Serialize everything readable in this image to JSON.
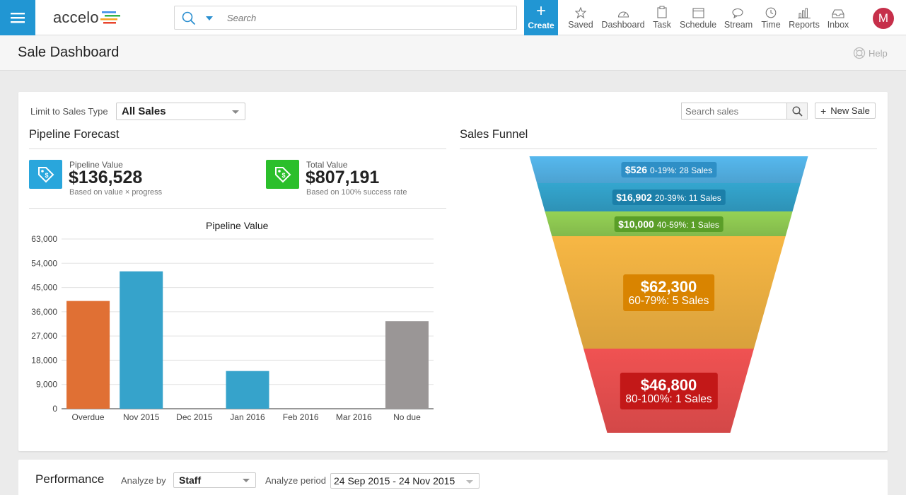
{
  "app": {
    "logo": "accelo"
  },
  "topbar": {
    "search_placeholder": "Search",
    "create_label": "Create",
    "nav": [
      {
        "label": "Saved",
        "icon": "star-icon"
      },
      {
        "label": "Dashboard",
        "icon": "gauge-icon"
      },
      {
        "label": "Task",
        "icon": "clipboard-icon"
      },
      {
        "label": "Schedule",
        "icon": "calendar-icon"
      },
      {
        "label": "Stream",
        "icon": "chat-bubbles-icon"
      },
      {
        "label": "Time",
        "icon": "clock-icon"
      },
      {
        "label": "Reports",
        "icon": "bar-chart-icon"
      },
      {
        "label": "Inbox",
        "icon": "inbox-tray-icon"
      }
    ],
    "avatar_initial": "M",
    "avatar_color": "#c62f4a"
  },
  "page": {
    "title": "Sale Dashboard",
    "help_label": "Help"
  },
  "filters": {
    "limit_label": "Limit to Sales Type",
    "sales_type": "All Sales",
    "search_placeholder": "Search sales",
    "new_sale_label": "New Sale"
  },
  "pipeline": {
    "title": "Pipeline Forecast",
    "pipeline_value_label": "Pipeline Value",
    "pipeline_value": "$136,528",
    "pipeline_value_note": "Based on value × progress",
    "total_value_label": "Total Value",
    "total_value": "$807,191",
    "total_value_note": "Based on 100% success rate",
    "accent_blue": "#29a6dc",
    "accent_green": "#2bbf2b"
  },
  "chart_data": {
    "type": "bar",
    "title": "Pipeline Value",
    "categories": [
      "Overdue",
      "Nov 2015",
      "Dec 2015",
      "Jan 2016",
      "Feb 2016",
      "Mar 2016",
      "No due"
    ],
    "values": [
      40000,
      51000,
      0,
      14000,
      0,
      0,
      32500
    ],
    "colors": [
      "#e07034",
      "#36a3cb",
      "#36a3cb",
      "#36a3cb",
      "#36a3cb",
      "#36a3cb",
      "#9a9696"
    ],
    "ylim": [
      0,
      63000
    ],
    "yticks": [
      "0",
      "9,000",
      "18,000",
      "27,000",
      "36,000",
      "45,000",
      "54,000",
      "63,000"
    ],
    "grid": true
  },
  "funnel": {
    "title": "Sales Funnel",
    "stages": [
      {
        "amount": "$526",
        "label": "0-19%: 28 Sales",
        "color": "#56b8ee",
        "badge": "#2e8fc6"
      },
      {
        "amount": "$16,902",
        "label": "20-39%: 11 Sales",
        "color": "#34a6cf",
        "badge": "#1b7fa9"
      },
      {
        "amount": "$10,000",
        "label": "40-59%: 1 Sales",
        "color": "#95d255",
        "badge": "#5a9e28"
      },
      {
        "amount": "$62,300",
        "label": "60-79%: 5 Sales",
        "color": "#f7b744",
        "badge": "#d98400"
      },
      {
        "amount": "$46,800",
        "label": "80-100%: 1 Sales",
        "color": "#f05252",
        "badge": "#c31818"
      }
    ]
  },
  "performance": {
    "title": "Performance",
    "analyze_by_label": "Analyze by",
    "analyze_by": "Staff",
    "analyze_period_label": "Analyze period",
    "analyze_period": "24 Sep 2015 - 24 Nov 2015"
  }
}
